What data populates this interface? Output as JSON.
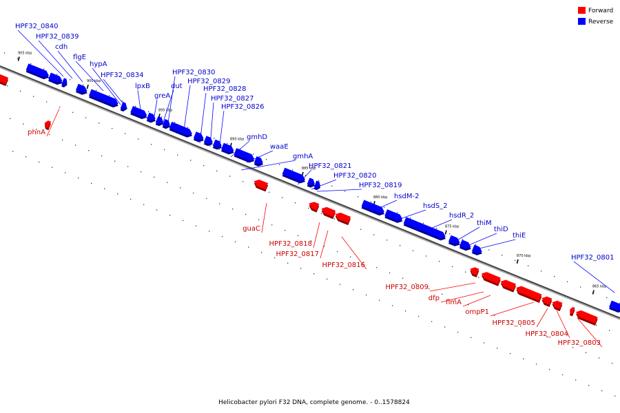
{
  "title": "Helicobacter pylori F32 DNA, complete genome. - 0..1578824",
  "legend": [
    {
      "label": "Forward",
      "color": "#ff0000"
    },
    {
      "label": "Reverse",
      "color": "#0000ff"
    }
  ],
  "colors": {
    "forward": "#ff0000",
    "reverse": "#0000ff",
    "forward_label": "#cc0000",
    "reverse_label": "#0000cc"
  },
  "ticks": [
    "905 kbp",
    "900 kbp",
    "895 kbp",
    "890 kbp",
    "885 kbp",
    "880 kbp",
    "875 kbp",
    "870 kbp",
    "865 kbp"
  ],
  "genes": [
    {
      "name": "HPF32_0840",
      "strand": "reverse"
    },
    {
      "name": "HPF32_0839",
      "strand": "reverse"
    },
    {
      "name": "cdh",
      "strand": "reverse"
    },
    {
      "name": "flgE",
      "strand": "reverse"
    },
    {
      "name": "hypA",
      "strand": "reverse"
    },
    {
      "name": "HPF32_0834",
      "strand": "reverse"
    },
    {
      "name": "lpxB",
      "strand": "reverse"
    },
    {
      "name": "HPF32_0830",
      "strand": "reverse"
    },
    {
      "name": "dut",
      "strand": "reverse"
    },
    {
      "name": "greA",
      "strand": "reverse"
    },
    {
      "name": "HPF32_0829",
      "strand": "reverse"
    },
    {
      "name": "HPF32_0828",
      "strand": "reverse"
    },
    {
      "name": "HPF32_0827",
      "strand": "reverse"
    },
    {
      "name": "HPF32_0826",
      "strand": "reverse"
    },
    {
      "name": "gmhD",
      "strand": "reverse"
    },
    {
      "name": "waaE",
      "strand": "reverse"
    },
    {
      "name": "gmhA",
      "strand": "reverse"
    },
    {
      "name": "HPF32_0821",
      "strand": "reverse"
    },
    {
      "name": "HPF32_0820",
      "strand": "reverse"
    },
    {
      "name": "HPF32_0819",
      "strand": "reverse"
    },
    {
      "name": "hsdM-2",
      "strand": "reverse"
    },
    {
      "name": "hsdS_2",
      "strand": "reverse"
    },
    {
      "name": "hsdR_2",
      "strand": "reverse"
    },
    {
      "name": "thiM",
      "strand": "reverse"
    },
    {
      "name": "thiD",
      "strand": "reverse"
    },
    {
      "name": "thiE",
      "strand": "reverse"
    },
    {
      "name": "HPF32_0801",
      "strand": "reverse"
    },
    {
      "name": "phnA",
      "strand": "forward"
    },
    {
      "name": "guaC",
      "strand": "forward"
    },
    {
      "name": "HPF32_0818",
      "strand": "forward"
    },
    {
      "name": "HPF32_0817",
      "strand": "forward"
    },
    {
      "name": "HPF32_0816",
      "strand": "forward"
    },
    {
      "name": "HPF32_0809",
      "strand": "forward"
    },
    {
      "name": "dfp",
      "strand": "forward"
    },
    {
      "name": "flmA",
      "strand": "forward"
    },
    {
      "name": "ompP1",
      "strand": "forward"
    },
    {
      "name": "HPF32_0805",
      "strand": "forward"
    },
    {
      "name": "HPF32_0804",
      "strand": "forward"
    },
    {
      "name": "HPF32_0803",
      "strand": "forward"
    }
  ]
}
